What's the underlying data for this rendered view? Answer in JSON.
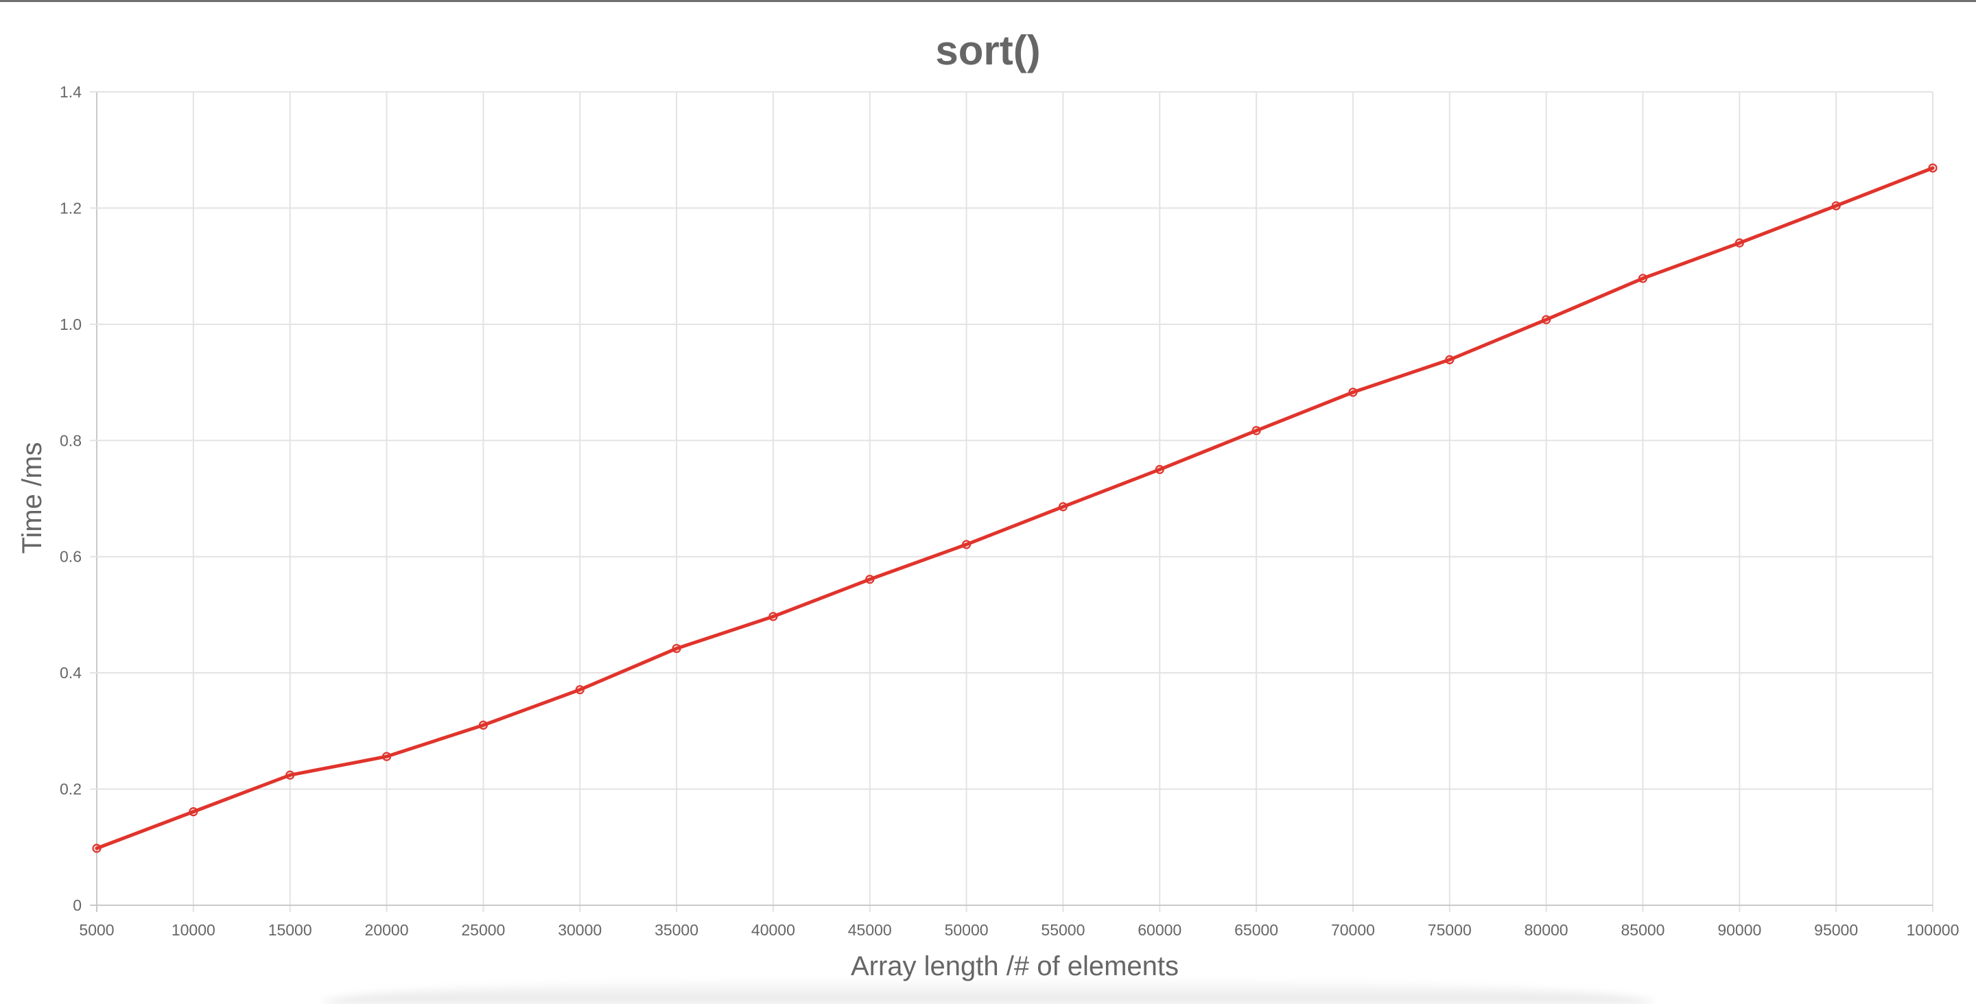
{
  "chart_data": {
    "type": "line",
    "title": "sort()",
    "xlabel": "Array length /# of elements",
    "ylabel": "Time /ms",
    "ylim": [
      0,
      1.4
    ],
    "yticks": [
      "0",
      "0.2",
      "0.4",
      "0.6",
      "0.8",
      "1.0",
      "1.2",
      "1.4"
    ],
    "categories": [
      "5000",
      "10000",
      "15000",
      "20000",
      "25000",
      "30000",
      "35000",
      "40000",
      "45000",
      "50000",
      "55000",
      "60000",
      "65000",
      "70000",
      "75000",
      "80000",
      "85000",
      "90000",
      "95000",
      "100000"
    ],
    "grid": true,
    "series": [
      {
        "color": "#e0342c",
        "values": [
          0.098,
          0.161,
          0.224,
          0.256,
          0.31,
          0.371,
          0.442,
          0.497,
          0.561,
          0.621,
          0.686,
          0.75,
          0.817,
          0.883,
          0.939,
          1.008,
          1.079,
          1.14,
          1.204,
          1.269
        ]
      }
    ]
  }
}
